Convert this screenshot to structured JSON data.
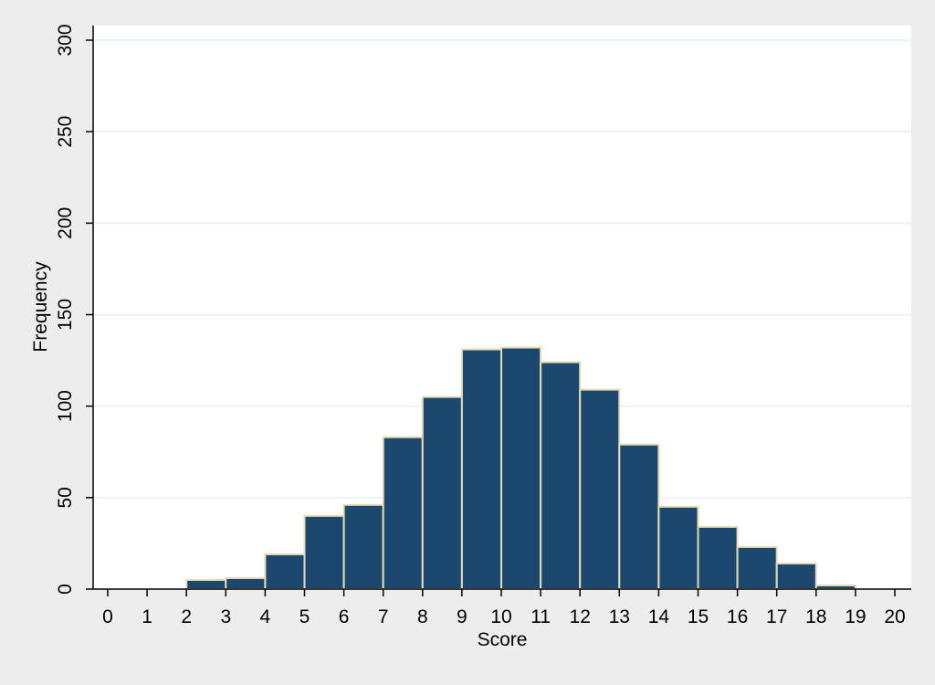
{
  "chart_data": {
    "type": "bar",
    "title": "",
    "xlabel": "Score",
    "ylabel": "Frequency",
    "bins": [
      {
        "from": 2,
        "to": 3,
        "value": 5
      },
      {
        "from": 3,
        "to": 4,
        "value": 6
      },
      {
        "from": 4,
        "to": 5,
        "value": 19
      },
      {
        "from": 5,
        "to": 6,
        "value": 40
      },
      {
        "from": 6,
        "to": 7,
        "value": 46
      },
      {
        "from": 7,
        "to": 8,
        "value": 83
      },
      {
        "from": 8,
        "to": 9,
        "value": 105
      },
      {
        "from": 9,
        "to": 10,
        "value": 131
      },
      {
        "from": 10,
        "to": 11,
        "value": 132
      },
      {
        "from": 11,
        "to": 12,
        "value": 124
      },
      {
        "from": 12,
        "to": 13,
        "value": 109
      },
      {
        "from": 13,
        "to": 14,
        "value": 79
      },
      {
        "from": 14,
        "to": 15,
        "value": 45
      },
      {
        "from": 15,
        "to": 16,
        "value": 34
      },
      {
        "from": 16,
        "to": 17,
        "value": 23
      },
      {
        "from": 17,
        "to": 18,
        "value": 14
      },
      {
        "from": 18,
        "to": 19,
        "value": 2
      }
    ],
    "xlim": [
      0,
      20
    ],
    "ylim": [
      0,
      300
    ],
    "x_ticks": [
      "0",
      "1",
      "2",
      "3",
      "4",
      "5",
      "6",
      "7",
      "8",
      "9",
      "10",
      "11",
      "12",
      "13",
      "14",
      "15",
      "16",
      "17",
      "18",
      "19",
      "20"
    ],
    "y_ticks": [
      "0",
      "50",
      "100",
      "150",
      "200",
      "250",
      "300"
    ],
    "grid": true,
    "colors": {
      "bar_fill": "#1c4870",
      "bar_edge": "#e6dcb4",
      "plot_bg": "#ffffff",
      "page_bg": "#ededed",
      "grid": "#e8eff3",
      "axis": "#000000"
    }
  }
}
